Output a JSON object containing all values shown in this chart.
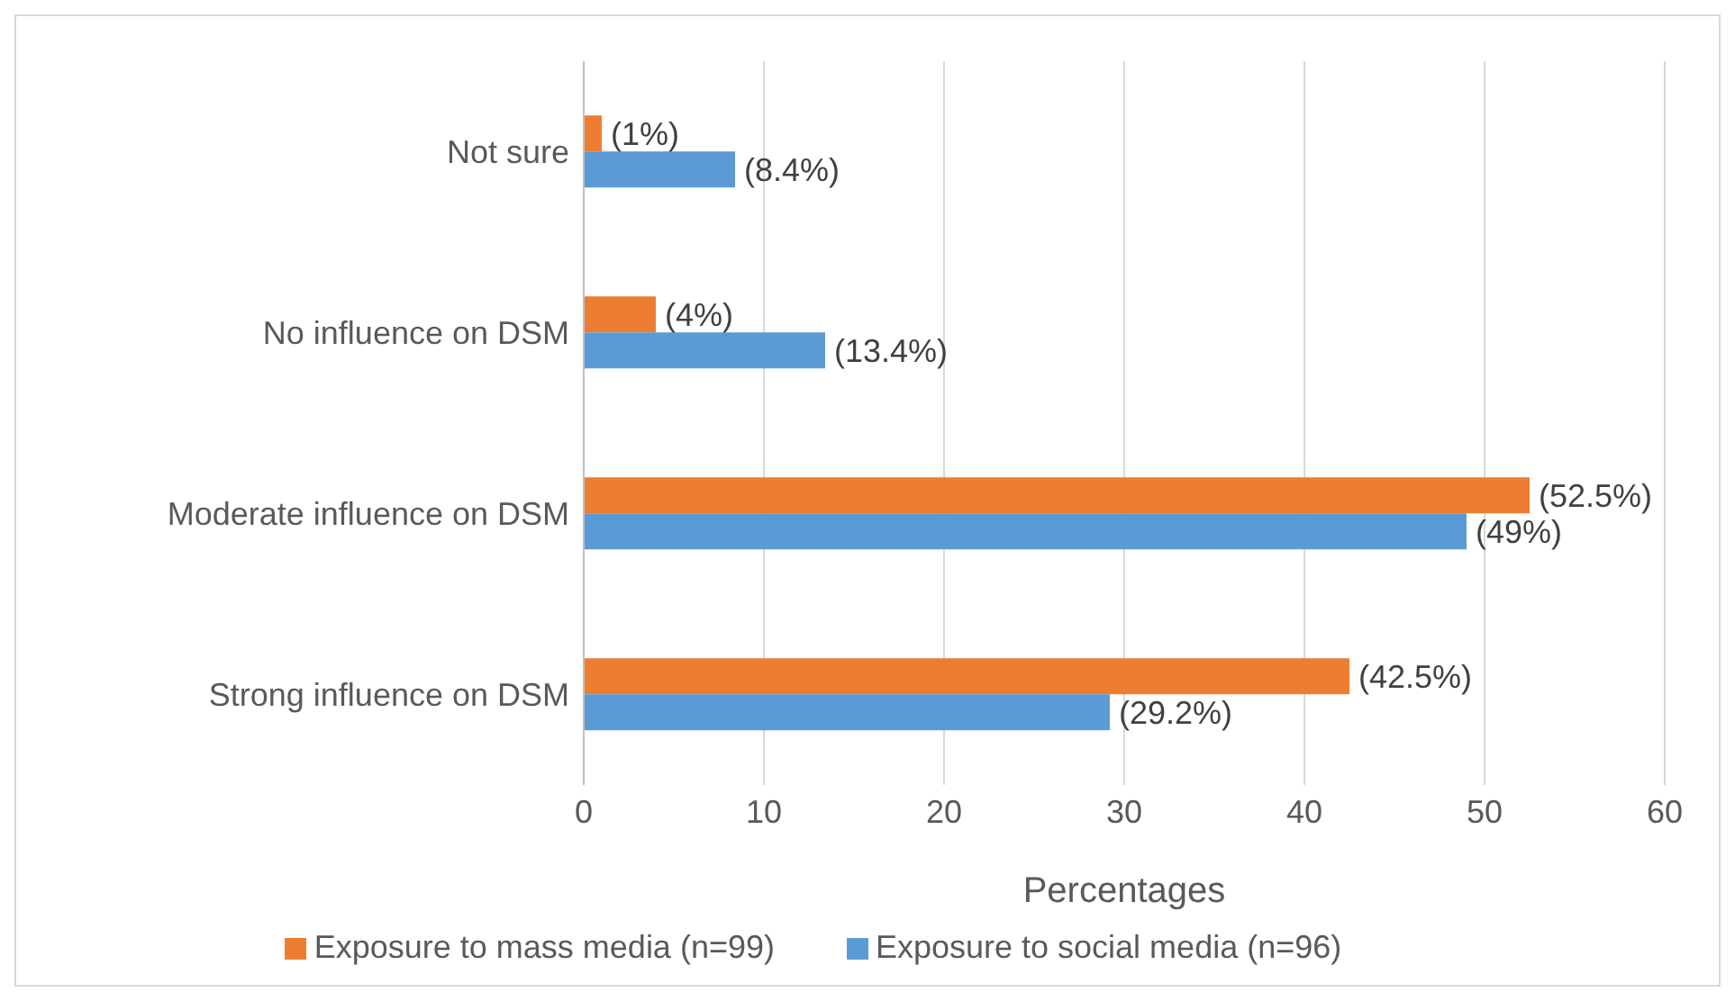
{
  "chart_data": {
    "type": "bar",
    "orientation": "horizontal",
    "categories": [
      "Not sure",
      "No influence on DSM",
      "Moderate influence on DSM",
      "Strong influence on DSM"
    ],
    "series": [
      {
        "name": "Exposure to mass media (n=99)",
        "color": "#ed7d31",
        "values": [
          1,
          4,
          52.5,
          42.5
        ],
        "value_labels": [
          "(1%)",
          "(4%)",
          "(52.5%)",
          "(42.5%)"
        ]
      },
      {
        "name": "Exposure to social media (n=96)",
        "color": "#5b9bd5",
        "values": [
          8.4,
          13.4,
          49,
          29.2
        ],
        "value_labels": [
          "(8.4%)",
          "(13.4%)",
          "(49%)",
          "(29.2%)"
        ]
      }
    ],
    "xlabel": "Percentages",
    "xlim": [
      0,
      60
    ],
    "xticks": [
      0,
      10,
      20,
      30,
      40,
      50,
      60
    ],
    "grid": "x",
    "legend": "bottom"
  }
}
